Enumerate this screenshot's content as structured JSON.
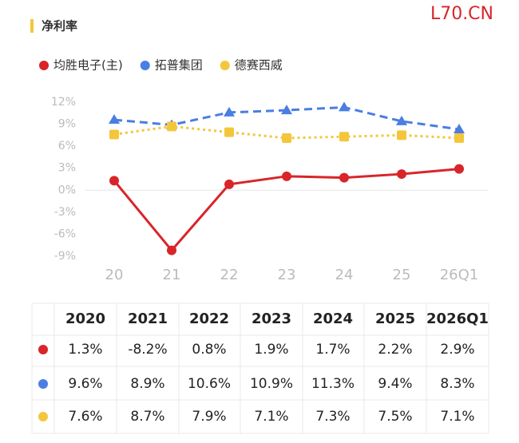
{
  "section_title": "净利率",
  "watermark": "L70.CN",
  "chart_data": {
    "type": "line",
    "categories": [
      "20",
      "21",
      "22",
      "23",
      "24",
      "25",
      "26Q1"
    ],
    "series": [
      {
        "name": "均胜电子(主)",
        "color": "#d8252a",
        "marker": "circle",
        "line_style": "solid",
        "values": [
          1.3,
          -8.2,
          0.8,
          1.9,
          1.7,
          2.2,
          2.9
        ]
      },
      {
        "name": "拓普集团",
        "color": "#4a7ee3",
        "marker": "triangle",
        "line_style": "dashed",
        "values": [
          9.6,
          8.9,
          10.6,
          10.9,
          11.3,
          9.4,
          8.3
        ]
      },
      {
        "name": "德赛西威",
        "color": "#f3c63c",
        "marker": "square",
        "line_style": "dotted",
        "values": [
          7.6,
          8.7,
          7.9,
          7.1,
          7.3,
          7.5,
          7.1
        ]
      }
    ],
    "ylim": [
      -9,
      12
    ],
    "yticks": [
      {
        "value": 12,
        "label": "12%"
      },
      {
        "value": 9,
        "label": "9%"
      },
      {
        "value": 6,
        "label": "6%"
      },
      {
        "value": 3,
        "label": "3%"
      },
      {
        "value": 0,
        "label": "0%"
      },
      {
        "value": -3,
        "label": "-3%"
      },
      {
        "value": -6,
        "label": "-6%"
      },
      {
        "value": -9,
        "label": "-9%"
      }
    ],
    "grid": false
  },
  "table": {
    "header": [
      "2020",
      "2021",
      "2022",
      "2023",
      "2024",
      "2025",
      "2026Q1"
    ],
    "rows": [
      [
        "1.3%",
        "-8.2%",
        "0.8%",
        "1.9%",
        "1.7%",
        "2.2%",
        "2.9%"
      ],
      [
        "9.6%",
        "8.9%",
        "10.6%",
        "10.9%",
        "11.3%",
        "9.4%",
        "8.3%"
      ],
      [
        "7.6%",
        "8.7%",
        "7.9%",
        "7.1%",
        "7.3%",
        "7.5%",
        "7.1%"
      ]
    ]
  }
}
